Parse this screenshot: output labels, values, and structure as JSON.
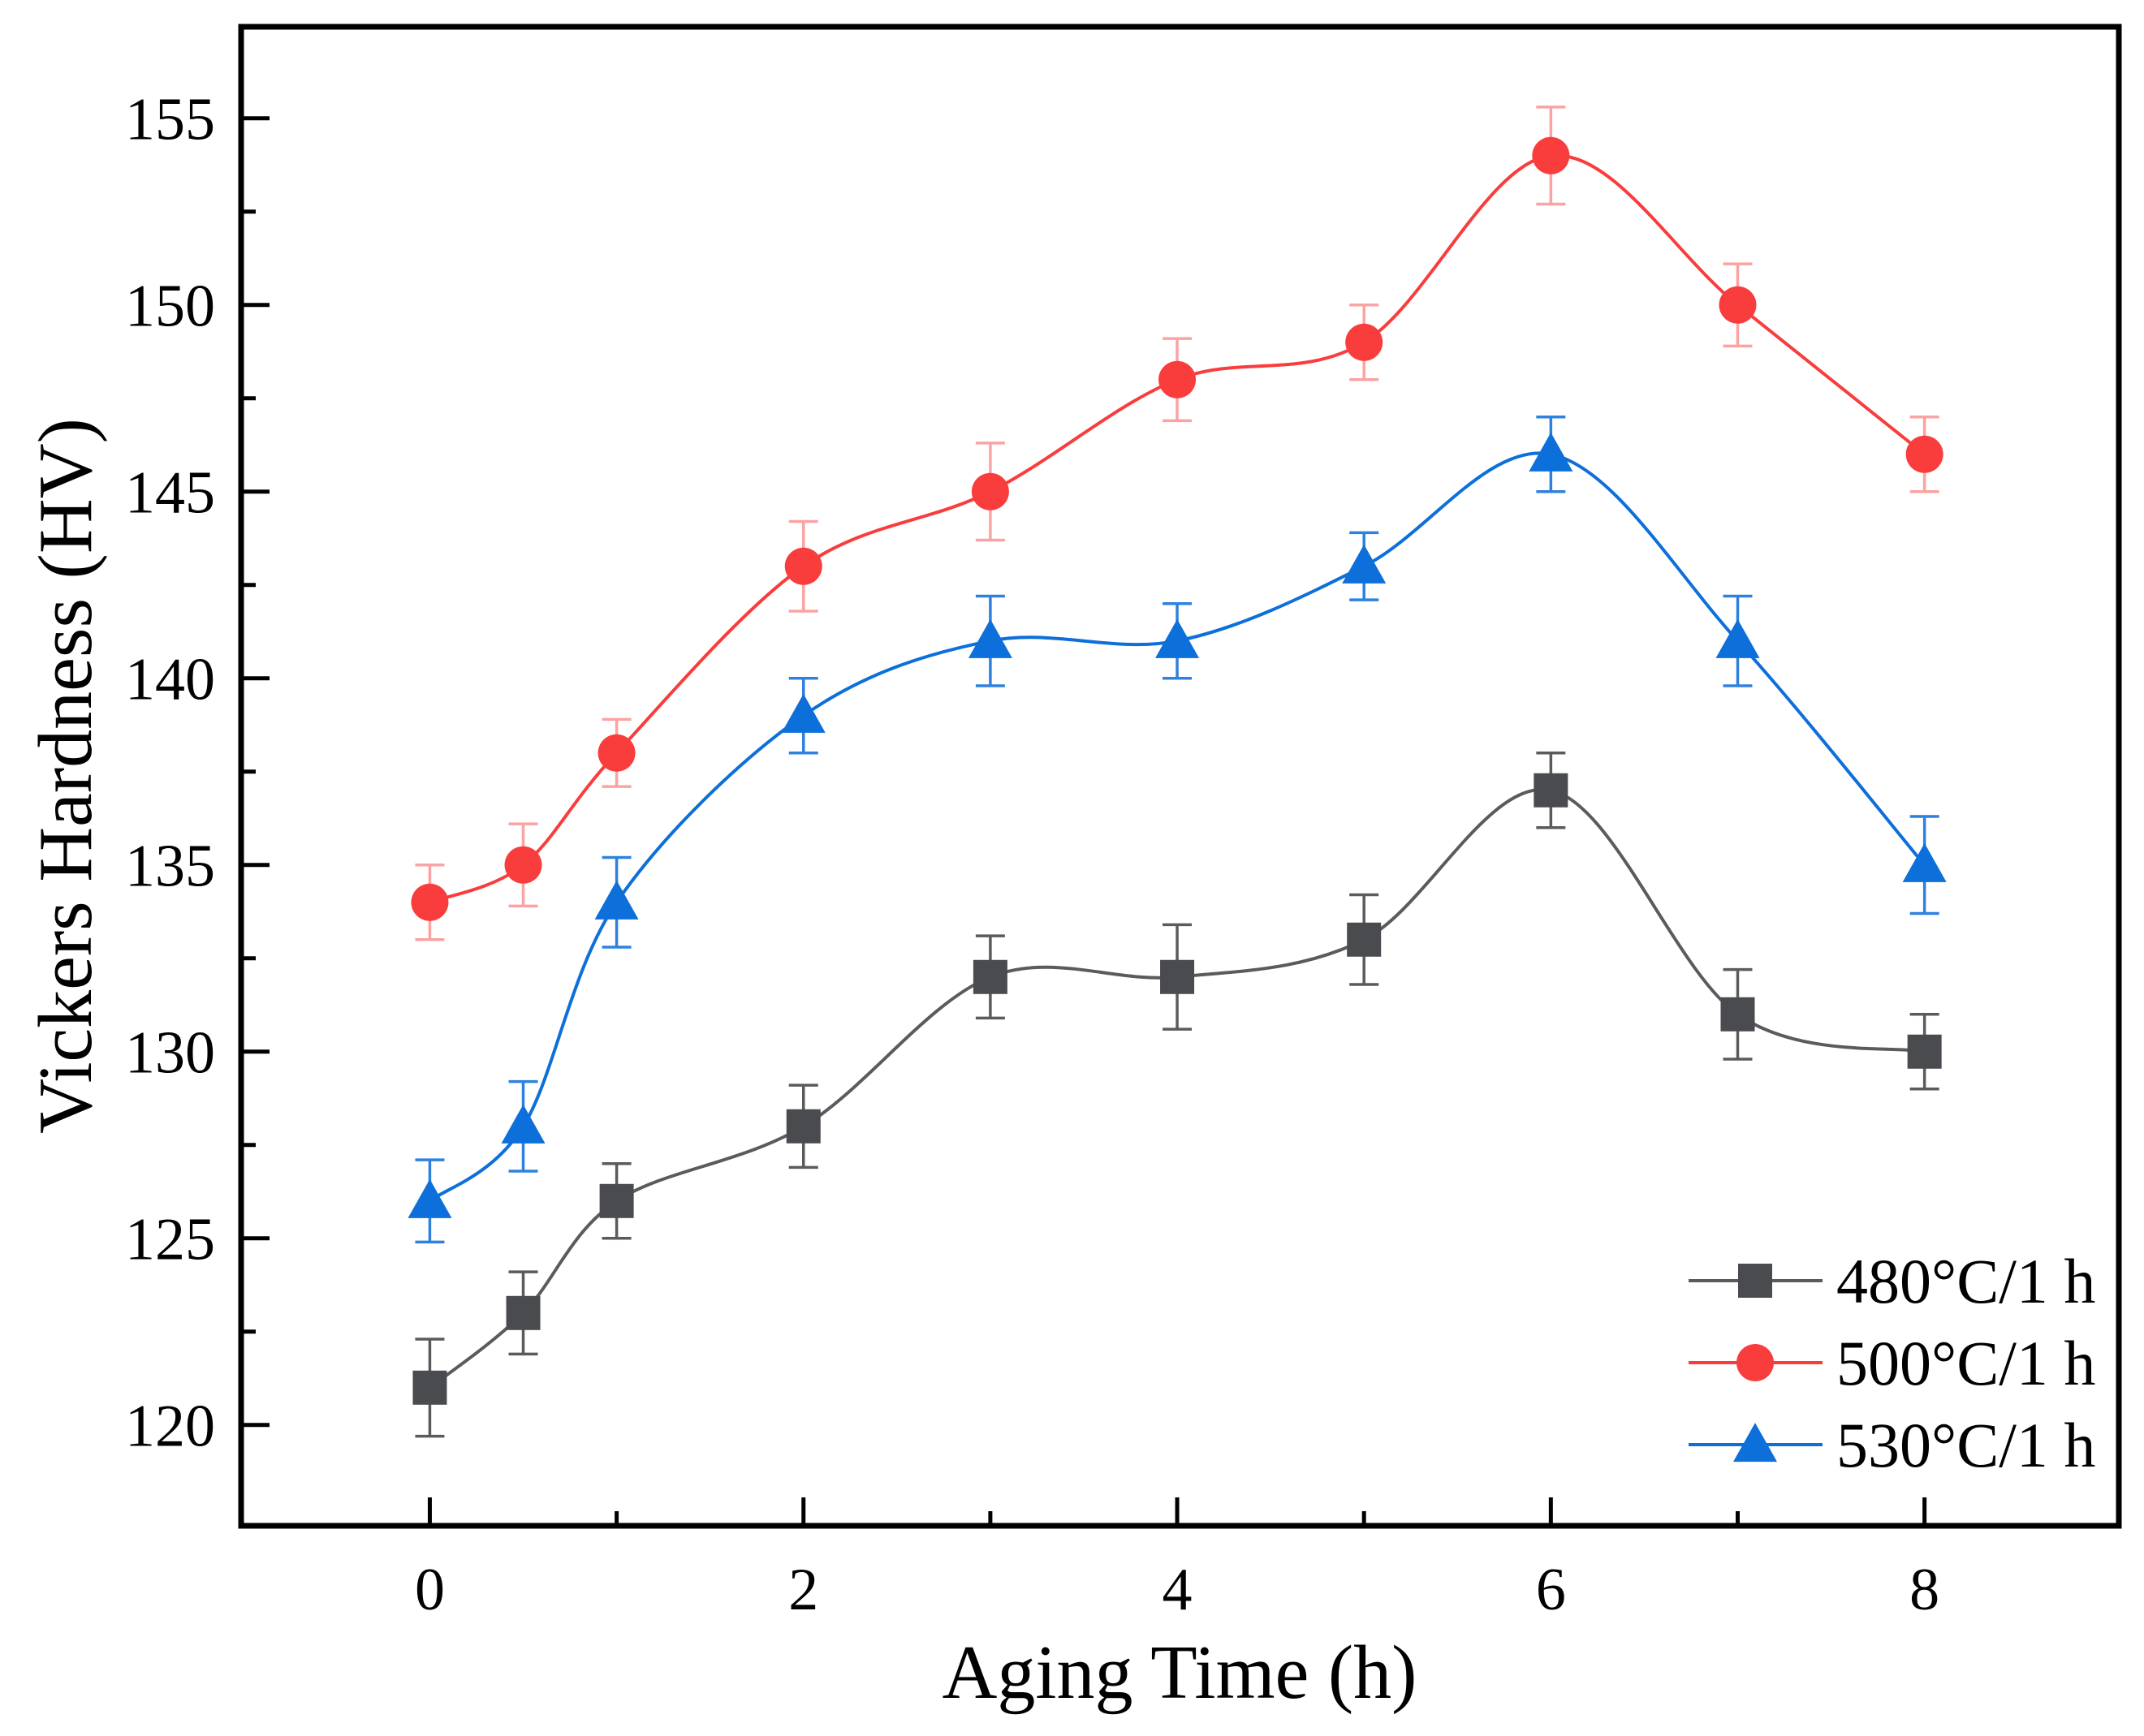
{
  "figure": {
    "background": "#ffffff",
    "axis_color": "#000000"
  },
  "chart_data": {
    "type": "line",
    "title": "",
    "xlabel": "Aging Time (h)",
    "ylabel": "Vickers Hardness (HV)",
    "x": [
      0,
      0.5,
      1,
      2,
      3,
      4,
      5,
      6,
      7,
      8
    ],
    "series": [
      {
        "name": "480°C/1 h",
        "marker": "square",
        "marker_color": "#4a4b4f",
        "line_color": "#5a5b5e",
        "errorbar_color": "#5a5b5e",
        "values": [
          121,
          123,
          126,
          128,
          132,
          132,
          133,
          137,
          131,
          130
        ],
        "errors": [
          1.3,
          1.1,
          1.0,
          1.1,
          1.1,
          1.4,
          1.2,
          1.0,
          1.2,
          1.0
        ]
      },
      {
        "name": "500°C/1 h",
        "marker": "circle",
        "marker_color": "#f93d3d",
        "line_color": "#f93d3d",
        "errorbar_color": "#fba3a3",
        "values": [
          134,
          135,
          138,
          143,
          145,
          148,
          149,
          154,
          150,
          146
        ],
        "errors": [
          1.0,
          1.1,
          0.9,
          1.2,
          1.3,
          1.1,
          1.0,
          1.3,
          1.1,
          1.0
        ]
      },
      {
        "name": "530°C/1 h",
        "marker": "triangle",
        "marker_color": "#0d6fd9",
        "line_color": "#0d6fd9",
        "errorbar_color": "#2e82de",
        "values": [
          126,
          128,
          134,
          139,
          141,
          141,
          143,
          146,
          141,
          135
        ],
        "errors": [
          1.1,
          1.2,
          1.2,
          1.0,
          1.2,
          1.0,
          0.9,
          1.0,
          1.2,
          1.3
        ]
      }
    ],
    "xlim": [
      -1.01,
      9.04
    ],
    "ylim": [
      117.3,
      157.45
    ],
    "x_major_ticks": [
      0,
      2,
      4,
      6,
      8
    ],
    "x_minor_ticks": [
      1,
      3,
      5,
      7
    ],
    "y_major_ticks": [
      120,
      125,
      130,
      135,
      140,
      145,
      150,
      155
    ],
    "y_minor_ticks": [
      122.5,
      127.5,
      132.5,
      137.5,
      142.5,
      147.5,
      152.5
    ],
    "legend": {
      "position": "lower-right",
      "entries": [
        "480°C/1 h",
        "500°C/1 h",
        "530°C/1 h"
      ]
    },
    "grid": false
  }
}
